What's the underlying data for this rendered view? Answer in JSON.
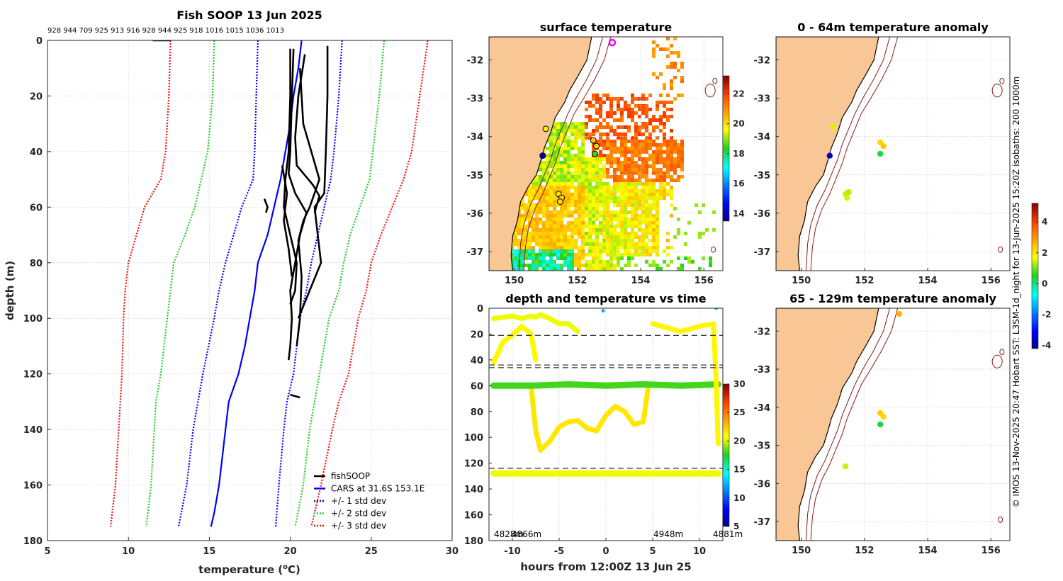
{
  "chart_data": [
    {
      "id": "profile",
      "type": "line",
      "title": "Fish SOOP 13 Jun 2025",
      "top_annotation": "928 944 709 925 913 916 928 944 925 918 1016 1015 1036 1013",
      "xlabel": "temperature (°C)",
      "xlabel_main": "temperature (",
      "xlabel_sup": "o",
      "xlabel_tail": "C)",
      "ylabel": "depth (m)",
      "xlim": [
        5,
        30
      ],
      "ylim": [
        180,
        0
      ],
      "xticks": [
        "5",
        "10",
        "15",
        "20",
        "25",
        "30"
      ],
      "yticks": [
        "0",
        "20",
        "40",
        "60",
        "80",
        "100",
        "120",
        "140",
        "160",
        "180"
      ],
      "legend": [
        "fishSOOP",
        "CARS at 31.6S 153.1E",
        "+/- 1 std dev",
        "+/- 2 std dev",
        "+/- 3 std dev"
      ],
      "legend_location": "lower-right",
      "colors": {
        "fishsoop": "#000000",
        "cars": "#0000ff",
        "std1": "#0000ff",
        "std2": "#22cc22",
        "std3": "#ee1111"
      },
      "series": [
        {
          "name": "CARS at 31.6S 153.1E",
          "depth": [
            0,
            10,
            20,
            30,
            40,
            50,
            60,
            70,
            80,
            90,
            100,
            110,
            120,
            130,
            140,
            150,
            160,
            170,
            175
          ],
          "temp": [
            20.7,
            20.5,
            20.2,
            20.0,
            19.7,
            19.4,
            19.0,
            18.6,
            18.0,
            17.8,
            17.5,
            17.2,
            16.8,
            16.2,
            16.0,
            15.8,
            15.6,
            15.3,
            15.1
          ]
        },
        {
          "name": "std1 upper",
          "depth": [
            0,
            20,
            40,
            50,
            60,
            70,
            80,
            90,
            100,
            120,
            130,
            140,
            160,
            175
          ],
          "temp": [
            23.2,
            23.0,
            22.7,
            22.5,
            22.1,
            21.7,
            21.3,
            21.0,
            20.6,
            20.2,
            19.8,
            19.6,
            19.3,
            19.1
          ]
        },
        {
          "name": "std1 lower",
          "depth": [
            0,
            20,
            40,
            50,
            60,
            70,
            80,
            90,
            100,
            120,
            130,
            140,
            160,
            175
          ],
          "temp": [
            18.0,
            17.9,
            17.8,
            17.7,
            17.0,
            16.5,
            16.0,
            15.6,
            15.3,
            14.6,
            14.3,
            14.0,
            13.6,
            13.1
          ]
        },
        {
          "name": "std2 upper",
          "depth": [
            0,
            20,
            40,
            50,
            60,
            70,
            80,
            90,
            100,
            120,
            130,
            140,
            160,
            175
          ],
          "temp": [
            25.8,
            25.5,
            25.1,
            24.9,
            24.3,
            23.7,
            23.3,
            23.0,
            22.4,
            21.8,
            21.5,
            21.2,
            20.8,
            20.3
          ]
        },
        {
          "name": "std2 lower",
          "depth": [
            0,
            20,
            40,
            50,
            60,
            70,
            80,
            90,
            100,
            120,
            130,
            140,
            160,
            175
          ],
          "temp": [
            15.3,
            15.2,
            14.9,
            14.5,
            14.1,
            13.5,
            12.8,
            12.6,
            12.4,
            12.0,
            11.7,
            11.6,
            11.4,
            11.1
          ]
        },
        {
          "name": "std3 upper",
          "depth": [
            0,
            20,
            40,
            50,
            60,
            70,
            80,
            90,
            100,
            120,
            130,
            140,
            160,
            175
          ],
          "temp": [
            28.5,
            28.0,
            27.5,
            27.0,
            26.3,
            25.6,
            25.0,
            24.7,
            24.2,
            23.6,
            23.0,
            22.6,
            21.9,
            21.3
          ]
        },
        {
          "name": "std3 lower",
          "depth": [
            0,
            20,
            40,
            50,
            60,
            70,
            80,
            90,
            100,
            120,
            130,
            140,
            160,
            175
          ],
          "temp": [
            12.6,
            12.5,
            12.3,
            12.0,
            11.0,
            10.5,
            10.0,
            9.8,
            9.7,
            9.6,
            9.5,
            9.4,
            9.2,
            8.9
          ]
        },
        {
          "name": "fishSOOP a",
          "depth": [
            3,
            20,
            40,
            50,
            60,
            70,
            75,
            80,
            90,
            95
          ],
          "temp": [
            20.0,
            20.0,
            19.9,
            19.7,
            19.6,
            20.0,
            20.2,
            20.4,
            20.3,
            20.0
          ]
        },
        {
          "name": "fishSOOP b",
          "depth": [
            3,
            20,
            40,
            48,
            55,
            62,
            70,
            80,
            90,
            100,
            110,
            115
          ],
          "temp": [
            20.2,
            20.1,
            20.0,
            19.9,
            20.3,
            21.0,
            20.6,
            20.3,
            20.0,
            20.1,
            20.0,
            19.9
          ]
        },
        {
          "name": "fishSOOP c",
          "depth": [
            2,
            20,
            40,
            55,
            60,
            70,
            80,
            90,
            100
          ],
          "temp": [
            22.3,
            22.3,
            22.2,
            22.1,
            21.5,
            21.7,
            21.9,
            21.2,
            20.5
          ]
        },
        {
          "name": "fishSOOP d",
          "depth": [
            10,
            30,
            50,
            60,
            65,
            72,
            85,
            100,
            110
          ],
          "temp": [
            20.6,
            20.8,
            21.8,
            21.2,
            20.8,
            20.5,
            20.7,
            20.6,
            20.4
          ]
        },
        {
          "name": "fishSOOP e",
          "depth": [
            5,
            20,
            35,
            45,
            52,
            56,
            62
          ],
          "temp": [
            20.9,
            20.5,
            20.3,
            20.4,
            21.4,
            21.8,
            21.5
          ]
        },
        {
          "name": "fishSOOP f",
          "depth": [
            45,
            55,
            60,
            65,
            75,
            85
          ],
          "temp": [
            19.5,
            19.8,
            19.7,
            19.6,
            19.9,
            20.1
          ]
        },
        {
          "name": "fishSOOP g",
          "depth": [
            57,
            60,
            62
          ],
          "temp": [
            18.4,
            18.6,
            18.5
          ]
        },
        {
          "name": "fishSOOP h",
          "depth": [
            127.5,
            128.5
          ],
          "temp": [
            20.0,
            20.6
          ]
        },
        {
          "name": "fishSOOP surface",
          "depth": [
            0,
            0
          ],
          "temp": [
            11.5,
            12.6
          ]
        }
      ]
    },
    {
      "id": "sst_map",
      "type": "heatmap",
      "title": "surface temperature",
      "xlim": [
        149.2,
        156.6
      ],
      "ylim": [
        -37.5,
        -31.4
      ],
      "xticks": [
        "150",
        "152",
        "154",
        "156"
      ],
      "yticks": [
        "-32",
        "-33",
        "-34",
        "-35",
        "-36",
        "-37"
      ],
      "colorbar_ticks": [
        "14",
        "16",
        "18",
        "20",
        "22"
      ],
      "colorbar_range": [
        13.5,
        23.2
      ],
      "stations": [
        {
          "lon": 150.9,
          "lat": -34.5,
          "temp": 14.0
        },
        {
          "lon": 151.0,
          "lat": -33.8,
          "temp": 19.8
        },
        {
          "lon": 151.4,
          "lat": -35.5,
          "temp": 20.0
        },
        {
          "lon": 151.5,
          "lat": -35.6,
          "temp": 20.1
        },
        {
          "lon": 151.45,
          "lat": -35.7,
          "temp": 20.1
        },
        {
          "lon": 152.5,
          "lat": -34.1,
          "temp": 20.3
        },
        {
          "lon": 152.6,
          "lat": -34.25,
          "temp": 20.2
        },
        {
          "lon": 152.55,
          "lat": -34.45,
          "temp": 18.5
        },
        {
          "lon": 153.1,
          "lat": -31.55,
          "temp": 22.5
        }
      ]
    },
    {
      "id": "time_series",
      "type": "scatter",
      "title": "depth and temperature vs time",
      "xlabel": "hours from 12:00Z 13 Jun 25",
      "xlim": [
        -12.5,
        12.5
      ],
      "ylim": [
        180,
        0
      ],
      "xticks": [
        "-10",
        "-5",
        "0",
        "5",
        "10"
      ],
      "yticks": [
        "0",
        "20",
        "40",
        "60",
        "80",
        "100",
        "120",
        "140",
        "160",
        "180"
      ],
      "colorbar_ticks": [
        "5",
        "10",
        "15",
        "20",
        "25",
        "30"
      ],
      "colorbar_range": [
        5,
        30
      ],
      "dashed_depths": [
        21,
        44,
        46,
        124
      ],
      "bottom_labels": [
        "4828m",
        "4866m",
        "4948m",
        "4881m"
      ],
      "series": [
        {
          "name": "upper cast",
          "temp": 20.5,
          "hours": [
            -12,
            -11,
            -10,
            -9,
            -8,
            -7.5,
            -7,
            -6,
            -5,
            -4,
            -3
          ],
          "depth": [
            8,
            7,
            6,
            8,
            6,
            7,
            5,
            8,
            12,
            12,
            18
          ]
        },
        {
          "name": "mid cast",
          "temp": 21.0,
          "hours": [
            -12,
            -11,
            -10,
            -9,
            -8,
            -7.5
          ],
          "depth": [
            42,
            26,
            21,
            14,
            20,
            40
          ]
        },
        {
          "name": "deep cast",
          "temp": 21.5,
          "hours": [
            -8,
            -7.5,
            -7,
            -6,
            -5,
            -4,
            -3,
            -2,
            -1,
            0,
            1,
            2,
            3,
            4,
            4.5
          ],
          "depth": [
            60,
            95,
            110,
            103,
            92,
            88,
            87,
            93,
            95,
            83,
            76,
            80,
            90,
            88,
            62
          ]
        },
        {
          "name": "60m layer",
          "temp": 18.0,
          "hours": [
            -12,
            -8,
            -4,
            0,
            4,
            8,
            12
          ],
          "depth": [
            60,
            60,
            59,
            60,
            59,
            60,
            59
          ]
        },
        {
          "name": "128m layer",
          "temp": 20.5,
          "hours": [
            -12,
            -8,
            -4,
            0,
            4,
            8,
            12
          ],
          "depth": [
            128,
            128,
            128,
            128,
            128,
            128,
            128
          ]
        },
        {
          "name": "right casts",
          "temp": 21.0,
          "hours": [
            5,
            6,
            7,
            8,
            9,
            10,
            11.5,
            11.8,
            12
          ],
          "depth": [
            12,
            14,
            16,
            18,
            16,
            14,
            12,
            60,
            105
          ]
        }
      ]
    },
    {
      "id": "anom_0_64",
      "type": "scatter",
      "title": "0 - 64m temperature anomaly",
      "xlim": [
        149.2,
        156.6
      ],
      "ylim": [
        -37.5,
        -31.4
      ],
      "xticks": [
        "150",
        "152",
        "154",
        "156"
      ],
      "yticks": [
        "-32",
        "-33",
        "-34",
        "-35",
        "-36",
        "-37"
      ],
      "points": [
        {
          "lon": 150.9,
          "lat": -34.5,
          "anomaly": -3.8
        },
        {
          "lon": 151.0,
          "lat": -33.75,
          "anomaly": 1.5
        },
        {
          "lon": 151.4,
          "lat": -35.5,
          "anomaly": 1.4
        },
        {
          "lon": 151.45,
          "lat": -35.6,
          "anomaly": 1.5
        },
        {
          "lon": 151.5,
          "lat": -35.45,
          "anomaly": 1.3
        },
        {
          "lon": 152.5,
          "lat": -34.15,
          "anomaly": 2.2
        },
        {
          "lon": 152.6,
          "lat": -34.25,
          "anomaly": 2.4
        },
        {
          "lon": 152.5,
          "lat": -34.45,
          "anomaly": 0.3
        }
      ]
    },
    {
      "id": "anom_65_129",
      "type": "scatter",
      "title": "65 - 129m temperature anomaly",
      "xlim": [
        149.2,
        156.6
      ],
      "ylim": [
        -37.5,
        -31.4
      ],
      "xticks": [
        "150",
        "152",
        "154",
        "156"
      ],
      "yticks": [
        "-32",
        "-33",
        "-34",
        "-35",
        "-36",
        "-37"
      ],
      "points": [
        {
          "lon": 151.4,
          "lat": -35.55,
          "anomaly": 1.4
        },
        {
          "lon": 152.5,
          "lat": -34.15,
          "anomaly": 2.3
        },
        {
          "lon": 152.6,
          "lat": -34.25,
          "anomaly": 2.2
        },
        {
          "lon": 152.5,
          "lat": -34.45,
          "anomaly": 0.3
        },
        {
          "lon": 153.1,
          "lat": -31.55,
          "anomaly": 2.6
        }
      ]
    },
    {
      "id": "anomaly_colorbar",
      "type": "heatmap",
      "colorbar_ticks": [
        "4",
        "2",
        "0",
        "-2",
        "-4"
      ],
      "colorbar_range": [
        -4.2,
        5.2
      ]
    }
  ],
  "side_note": "© IMOS 13-Nov-2025 20:47 Hobart SST: L3SM-1d_night for 13-Jun-2025 15:20Z isobaths: 200  1000m",
  "colors": {
    "land": "#f9c796",
    "isobath": "#8b1a1a",
    "highlight": "#ff00ff"
  }
}
